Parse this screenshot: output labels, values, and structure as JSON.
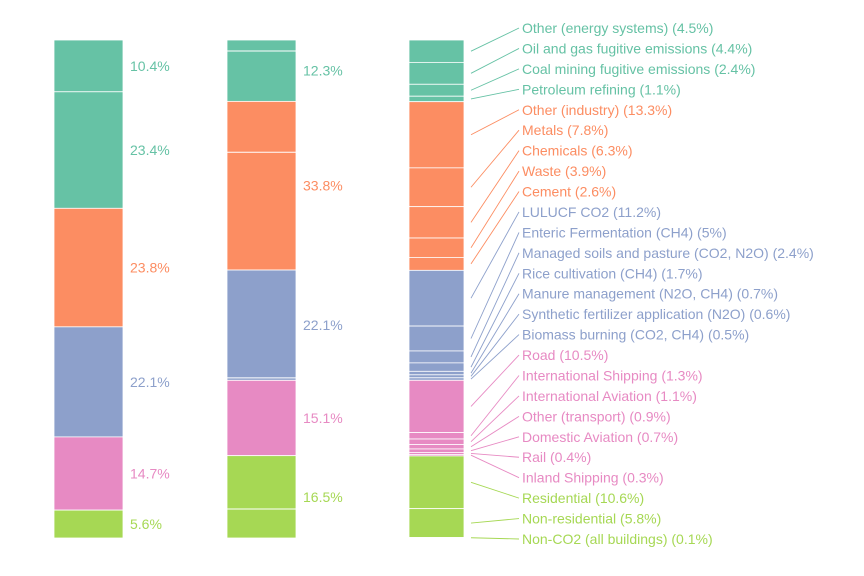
{
  "chart_data": [
    {
      "type": "bar",
      "stacked": true,
      "categories": [
        ""
      ],
      "value_unit": "%",
      "series": [
        {
          "label": "10.4%",
          "values": [
            10.4
          ],
          "color": "#66c2a5"
        },
        {
          "label": "23.4%",
          "values": [
            23.4
          ],
          "color": "#66c2a5"
        },
        {
          "label": "23.8%",
          "values": [
            23.8
          ],
          "color": "#fc8d62"
        },
        {
          "label": "22.1%",
          "values": [
            22.1
          ],
          "color": "#8da0cb"
        },
        {
          "label": "14.7%",
          "values": [
            14.7
          ],
          "color": "#e78ac3"
        },
        {
          "label": "5.6%",
          "values": [
            5.6
          ],
          "color": "#a6d854"
        }
      ]
    },
    {
      "type": "bar",
      "stacked": true,
      "categories": [
        ""
      ],
      "value_unit": "%",
      "series": [
        {
          "label": "12.3%",
          "values": [
            12.3
          ],
          "color": "#66c2a5",
          "sub_values": [
            2.2,
            10.1
          ]
        },
        {
          "label": "33.8%",
          "values": [
            33.8
          ],
          "color": "#fc8d62",
          "sub_values": [
            10.2,
            23.6
          ]
        },
        {
          "label": "22.1%",
          "values": [
            22.1
          ],
          "color": "#8da0cb",
          "sub_values": [
            21.6,
            0.5
          ]
        },
        {
          "label": "15.1%",
          "values": [
            15.1
          ],
          "color": "#e78ac3",
          "sub_values": [
            15.1
          ]
        },
        {
          "label": "16.5%",
          "values": [
            16.5
          ],
          "color": "#a6d854",
          "sub_values": [
            10.7,
            5.8
          ]
        }
      ]
    },
    {
      "type": "bar",
      "stacked": true,
      "categories": [
        ""
      ],
      "value_unit": "%",
      "series": [
        {
          "label": "Other (energy systems) (4.5%)",
          "values": [
            4.5
          ],
          "color": "#66c2a5"
        },
        {
          "label": "Oil and gas fugitive emissions (4.4%)",
          "values": [
            4.4
          ],
          "color": "#66c2a5"
        },
        {
          "label": "Coal mining fugitive emissions (2.4%)",
          "values": [
            2.4
          ],
          "color": "#66c2a5"
        },
        {
          "label": "Petroleum refining (1.1%)",
          "values": [
            1.1
          ],
          "color": "#66c2a5"
        },
        {
          "label": "Other (industry) (13.3%)",
          "values": [
            13.3
          ],
          "color": "#fc8d62"
        },
        {
          "label": "Metals (7.8%)",
          "values": [
            7.8
          ],
          "color": "#fc8d62"
        },
        {
          "label": "Chemicals (6.3%)",
          "values": [
            6.3
          ],
          "color": "#fc8d62"
        },
        {
          "label": "Waste (3.9%)",
          "values": [
            3.9
          ],
          "color": "#fc8d62"
        },
        {
          "label": "Cement (2.6%)",
          "values": [
            2.6
          ],
          "color": "#fc8d62"
        },
        {
          "label": "LULUCF CO2 (11.2%)",
          "values": [
            11.2
          ],
          "color": "#8da0cb"
        },
        {
          "label": "Enteric Fermentation (CH4) (5%)",
          "values": [
            5
          ],
          "color": "#8da0cb"
        },
        {
          "label": "Managed soils and pasture (CO2, N2O) (2.4%)",
          "values": [
            2.4
          ],
          "color": "#8da0cb"
        },
        {
          "label": "Rice cultivation (CH4) (1.7%)",
          "values": [
            1.7
          ],
          "color": "#8da0cb"
        },
        {
          "label": "Manure management (N2O, CH4) (0.7%)",
          "values": [
            0.7
          ],
          "color": "#8da0cb"
        },
        {
          "label": "Synthetic fertilizer application (N2O) (0.6%)",
          "values": [
            0.6
          ],
          "color": "#8da0cb"
        },
        {
          "label": "Biomass burning (CO2, CH4) (0.5%)",
          "values": [
            0.5
          ],
          "color": "#8da0cb"
        },
        {
          "label": "Road (10.5%)",
          "values": [
            10.5
          ],
          "color": "#e78ac3"
        },
        {
          "label": "International Shipping (1.3%)",
          "values": [
            1.3
          ],
          "color": "#e78ac3"
        },
        {
          "label": "International Aviation (1.1%)",
          "values": [
            1.1
          ],
          "color": "#e78ac3"
        },
        {
          "label": "Other (transport) (0.9%)",
          "values": [
            0.9
          ],
          "color": "#e78ac3"
        },
        {
          "label": "Domestic Aviation (0.7%)",
          "values": [
            0.7
          ],
          "color": "#e78ac3"
        },
        {
          "label": "Rail  (0.4%)",
          "values": [
            0.4
          ],
          "color": "#e78ac3"
        },
        {
          "label": "Inland Shipping (0.3%)",
          "values": [
            0.3
          ],
          "color": "#e78ac3"
        },
        {
          "label": "Residential (10.6%)",
          "values": [
            10.6
          ],
          "color": "#a6d854"
        },
        {
          "label": "Non-residential (5.8%)",
          "values": [
            5.8
          ],
          "color": "#a6d854"
        },
        {
          "label": "Non-CO2 (all buildings) (0.1%)",
          "values": [
            0.1
          ],
          "color": "#a6d854"
        }
      ]
    }
  ]
}
